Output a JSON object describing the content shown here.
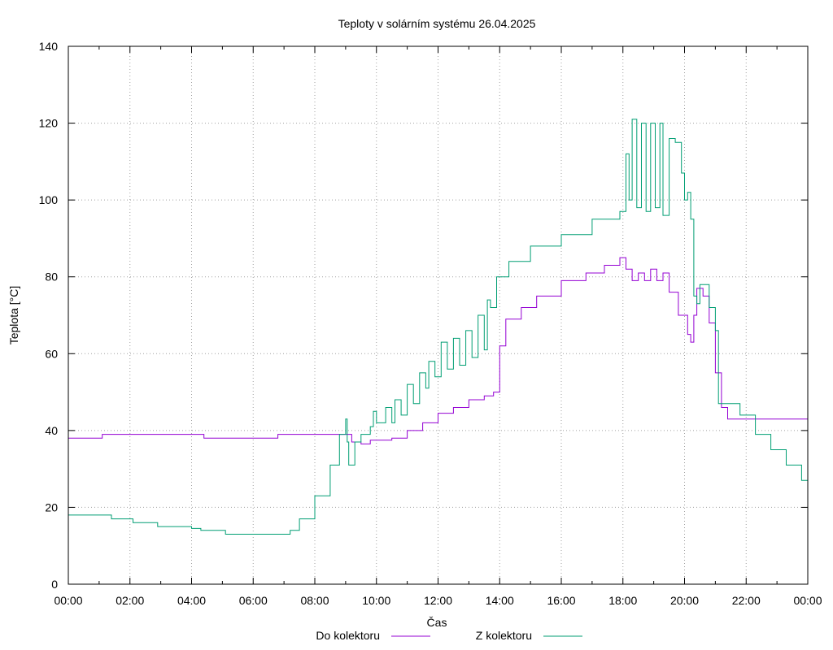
{
  "chart_data": {
    "type": "line",
    "title": "Teploty v solárním systému 26.04.2025",
    "xlabel": "Čas",
    "ylabel": "Teplota [°C]",
    "x_unit": "hours",
    "xlim": [
      0,
      24
    ],
    "ylim": [
      0,
      140
    ],
    "x_ticks": [
      0,
      2,
      4,
      6,
      8,
      10,
      12,
      14,
      16,
      18,
      20,
      22,
      24
    ],
    "x_tick_labels": [
      "00:00",
      "02:00",
      "04:00",
      "06:00",
      "08:00",
      "10:00",
      "12:00",
      "14:00",
      "16:00",
      "18:00",
      "20:00",
      "22:00",
      "00:00"
    ],
    "y_ticks": [
      0,
      20,
      40,
      60,
      80,
      100,
      120,
      140
    ],
    "y_tick_labels": [
      "0",
      "20",
      "40",
      "60",
      "80",
      "100",
      "120",
      "140"
    ],
    "grid": true,
    "legend_position": "bottom-center",
    "series": [
      {
        "name": "Do kolektoru",
        "color": "#9400d3",
        "points": [
          [
            0,
            38
          ],
          [
            1.0,
            38
          ],
          [
            1.1,
            39
          ],
          [
            3.0,
            39
          ],
          [
            4.3,
            39
          ],
          [
            4.4,
            38
          ],
          [
            6.7,
            38
          ],
          [
            6.8,
            39
          ],
          [
            9.0,
            39
          ],
          [
            9.2,
            37
          ],
          [
            9.5,
            36.5
          ],
          [
            9.8,
            37.5
          ],
          [
            10.5,
            38
          ],
          [
            11.0,
            40
          ],
          [
            11.5,
            42
          ],
          [
            12.0,
            44.5
          ],
          [
            12.5,
            46
          ],
          [
            13.0,
            48
          ],
          [
            13.5,
            49
          ],
          [
            13.8,
            50
          ],
          [
            14.0,
            62
          ],
          [
            14.2,
            69
          ],
          [
            14.7,
            72
          ],
          [
            15.2,
            75
          ],
          [
            16.0,
            79
          ],
          [
            16.8,
            81
          ],
          [
            17.4,
            83
          ],
          [
            17.9,
            85
          ],
          [
            18.0,
            85
          ],
          [
            18.1,
            82
          ],
          [
            18.3,
            79
          ],
          [
            18.5,
            81
          ],
          [
            18.7,
            79
          ],
          [
            18.9,
            82
          ],
          [
            19.1,
            79
          ],
          [
            19.3,
            81
          ],
          [
            19.5,
            76
          ],
          [
            19.8,
            70
          ],
          [
            20.1,
            65
          ],
          [
            20.2,
            63
          ],
          [
            20.3,
            70
          ],
          [
            20.4,
            77
          ],
          [
            20.6,
            75
          ],
          [
            20.8,
            68
          ],
          [
            21.0,
            55
          ],
          [
            21.2,
            46
          ],
          [
            21.4,
            43
          ],
          [
            21.6,
            43
          ],
          [
            23.9,
            43
          ],
          [
            24,
            42
          ]
        ]
      },
      {
        "name": "Z kolektoru",
        "color": "#009e73",
        "points": [
          [
            0,
            18
          ],
          [
            1.3,
            18
          ],
          [
            1.4,
            17
          ],
          [
            2.0,
            17
          ],
          [
            2.1,
            16
          ],
          [
            2.8,
            16
          ],
          [
            2.9,
            15
          ],
          [
            3.9,
            15
          ],
          [
            4.0,
            14.5
          ],
          [
            4.2,
            14.5
          ],
          [
            4.3,
            14
          ],
          [
            5.0,
            14
          ],
          [
            5.1,
            13
          ],
          [
            7.0,
            13
          ],
          [
            7.2,
            14
          ],
          [
            7.5,
            17
          ],
          [
            8.0,
            23
          ],
          [
            8.5,
            31
          ],
          [
            8.8,
            39
          ],
          [
            9.0,
            43
          ],
          [
            9.05,
            37
          ],
          [
            9.1,
            31
          ],
          [
            9.3,
            37
          ],
          [
            9.5,
            39
          ],
          [
            9.8,
            41
          ],
          [
            9.9,
            45
          ],
          [
            10.0,
            42
          ],
          [
            10.3,
            46
          ],
          [
            10.5,
            42
          ],
          [
            10.6,
            48
          ],
          [
            10.8,
            44
          ],
          [
            11.0,
            52
          ],
          [
            11.2,
            47
          ],
          [
            11.4,
            55
          ],
          [
            11.6,
            51
          ],
          [
            11.7,
            58
          ],
          [
            11.9,
            54
          ],
          [
            12.1,
            63
          ],
          [
            12.3,
            56
          ],
          [
            12.5,
            64
          ],
          [
            12.7,
            57
          ],
          [
            12.9,
            66
          ],
          [
            13.1,
            59
          ],
          [
            13.3,
            70
          ],
          [
            13.5,
            61
          ],
          [
            13.6,
            74
          ],
          [
            13.7,
            72
          ],
          [
            13.9,
            80
          ],
          [
            14.3,
            84
          ],
          [
            15.0,
            88
          ],
          [
            16.0,
            91
          ],
          [
            17.0,
            95
          ],
          [
            17.9,
            97
          ],
          [
            18.1,
            112
          ],
          [
            18.2,
            100
          ],
          [
            18.3,
            121
          ],
          [
            18.45,
            98
          ],
          [
            18.6,
            120
          ],
          [
            18.75,
            97
          ],
          [
            18.9,
            120
          ],
          [
            19.05,
            98
          ],
          [
            19.2,
            120
          ],
          [
            19.3,
            96
          ],
          [
            19.5,
            116
          ],
          [
            19.7,
            115
          ],
          [
            19.9,
            107
          ],
          [
            20.0,
            100
          ],
          [
            20.1,
            102
          ],
          [
            20.2,
            95
          ],
          [
            20.3,
            75
          ],
          [
            20.4,
            73
          ],
          [
            20.5,
            78
          ],
          [
            20.8,
            72
          ],
          [
            21.0,
            66
          ],
          [
            21.1,
            47
          ],
          [
            21.5,
            47
          ],
          [
            21.8,
            44
          ],
          [
            22.3,
            39
          ],
          [
            22.8,
            35
          ],
          [
            23.3,
            31
          ],
          [
            23.8,
            27
          ],
          [
            24,
            25
          ]
        ]
      }
    ]
  }
}
